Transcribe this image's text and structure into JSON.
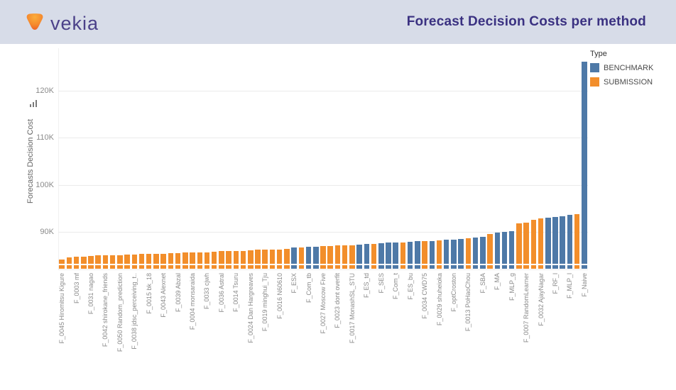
{
  "header": {
    "logo_text": "vekia",
    "title": "Forecast Decision Costs per method"
  },
  "legend": {
    "title": "Type",
    "items": [
      {
        "label": "BENCHMARK",
        "color": "#4e79a7"
      },
      {
        "label": "SUBMISSION",
        "color": "#f28e2b"
      }
    ]
  },
  "chart_data": {
    "type": "bar",
    "title": "Forecast Decision Costs per method",
    "xlabel": "",
    "ylabel": "Forecasts Decision Cost",
    "ylim": [
      82800,
      127000
    ],
    "grid": true,
    "legend_position": "top-right",
    "legend_title": "Type",
    "yticks": [
      {
        "value": 90000,
        "label": "90K"
      },
      {
        "value": 100000,
        "label": "100K"
      },
      {
        "value": 110000,
        "label": "110K"
      },
      {
        "value": 120000,
        "label": "120K"
      }
    ],
    "series": [
      {
        "name": "BENCHMARK",
        "color": "#4e79a7"
      },
      {
        "name": "SUBMISSION",
        "color": "#f28e2b"
      }
    ],
    "bars": [
      {
        "label": "F_0045 Hiromitsu Kigure",
        "type": "SUBMISSION",
        "value": 84200
      },
      {
        "label": "",
        "type": "SUBMISSION",
        "value": 84600
      },
      {
        "label": "F_0003 mf",
        "type": "SUBMISSION",
        "value": 84700
      },
      {
        "label": "",
        "type": "SUBMISSION",
        "value": 84800
      },
      {
        "label": "F_0031 nagao",
        "type": "SUBMISSION",
        "value": 84900
      },
      {
        "label": "",
        "type": "SUBMISSION",
        "value": 85000
      },
      {
        "label": "F_0042 shirokane_friends",
        "type": "SUBMISSION",
        "value": 85000
      },
      {
        "label": "",
        "type": "SUBMISSION",
        "value": 85100
      },
      {
        "label": "F_0050 Random_prediction",
        "type": "SUBMISSION",
        "value": 85100
      },
      {
        "label": "",
        "type": "SUBMISSION",
        "value": 85200
      },
      {
        "label": "F_0038 jdsc_perceiving_t..",
        "type": "SUBMISSION",
        "value": 85200
      },
      {
        "label": "",
        "type": "SUBMISSION",
        "value": 85300
      },
      {
        "label": "F_0015 bk_18",
        "type": "SUBMISSION",
        "value": 85300
      },
      {
        "label": "",
        "type": "SUBMISSION",
        "value": 85400
      },
      {
        "label": "F_0043 Alexnet",
        "type": "SUBMISSION",
        "value": 85400
      },
      {
        "label": "",
        "type": "SUBMISSION",
        "value": 85500
      },
      {
        "label": "F_0039 Abzal",
        "type": "SUBMISSION",
        "value": 85500
      },
      {
        "label": "",
        "type": "SUBMISSION",
        "value": 85600
      },
      {
        "label": "F_0004 monsaraida",
        "type": "SUBMISSION",
        "value": 85600
      },
      {
        "label": "",
        "type": "SUBMISSION",
        "value": 85700
      },
      {
        "label": "F_0033 cjwh",
        "type": "SUBMISSION",
        "value": 85700
      },
      {
        "label": "",
        "type": "SUBMISSION",
        "value": 85800
      },
      {
        "label": "F_0036 Astral",
        "type": "SUBMISSION",
        "value": 85900
      },
      {
        "label": "",
        "type": "SUBMISSION",
        "value": 85900
      },
      {
        "label": "F_0014 Tsuru",
        "type": "SUBMISSION",
        "value": 86000
      },
      {
        "label": "",
        "type": "SUBMISSION",
        "value": 86000
      },
      {
        "label": "F_0024 Dan Hargreaves",
        "type": "SUBMISSION",
        "value": 86100
      },
      {
        "label": "",
        "type": "SUBMISSION",
        "value": 86200
      },
      {
        "label": "F_0019 minghui_Tju",
        "type": "SUBMISSION",
        "value": 86200
      },
      {
        "label": "",
        "type": "SUBMISSION",
        "value": 86300
      },
      {
        "label": "F_0016 N60610",
        "type": "SUBMISSION",
        "value": 86300
      },
      {
        "label": "",
        "type": "SUBMISSION",
        "value": 86400
      },
      {
        "label": "F_ESX",
        "type": "BENCHMARK",
        "value": 86700
      },
      {
        "label": "",
        "type": "SUBMISSION",
        "value": 86700
      },
      {
        "label": "F_Com_tb",
        "type": "BENCHMARK",
        "value": 86800
      },
      {
        "label": "",
        "type": "BENCHMARK",
        "value": 86900
      },
      {
        "label": "F_0027 Moscow Five",
        "type": "SUBMISSION",
        "value": 87000
      },
      {
        "label": "",
        "type": "SUBMISSION",
        "value": 87000
      },
      {
        "label": "F_0023 dont overfit",
        "type": "SUBMISSION",
        "value": 87100
      },
      {
        "label": "",
        "type": "SUBMISSION",
        "value": 87100
      },
      {
        "label": "F_0017 MonashSL_STU",
        "type": "SUBMISSION",
        "value": 87200
      },
      {
        "label": "",
        "type": "BENCHMARK",
        "value": 87300
      },
      {
        "label": "F_ES_td",
        "type": "BENCHMARK",
        "value": 87400
      },
      {
        "label": "",
        "type": "SUBMISSION",
        "value": 87500
      },
      {
        "label": "F_SES",
        "type": "BENCHMARK",
        "value": 87600
      },
      {
        "label": "",
        "type": "BENCHMARK",
        "value": 87700
      },
      {
        "label": "F_Com_t",
        "type": "BENCHMARK",
        "value": 87700
      },
      {
        "label": "",
        "type": "SUBMISSION",
        "value": 87800
      },
      {
        "label": "F_ES_bu",
        "type": "BENCHMARK",
        "value": 87900
      },
      {
        "label": "",
        "type": "BENCHMARK",
        "value": 88000
      },
      {
        "label": "F_0034 CWD75",
        "type": "SUBMISSION",
        "value": 88000
      },
      {
        "label": "",
        "type": "BENCHMARK",
        "value": 88100
      },
      {
        "label": "F_0029 shuheioka",
        "type": "SUBMISSION",
        "value": 88200
      },
      {
        "label": "",
        "type": "BENCHMARK",
        "value": 88300
      },
      {
        "label": "F_optCroston",
        "type": "BENCHMARK",
        "value": 88300
      },
      {
        "label": "",
        "type": "BENCHMARK",
        "value": 88500
      },
      {
        "label": "F_0013 PoHaoChou",
        "type": "SUBMISSION",
        "value": 88600
      },
      {
        "label": "",
        "type": "BENCHMARK",
        "value": 88800
      },
      {
        "label": "F_SBA",
        "type": "BENCHMARK",
        "value": 89000
      },
      {
        "label": "",
        "type": "SUBMISSION",
        "value": 89500
      },
      {
        "label": "F_MA",
        "type": "BENCHMARK",
        "value": 89800
      },
      {
        "label": "",
        "type": "BENCHMARK",
        "value": 90000
      },
      {
        "label": "F_MLP_g",
        "type": "BENCHMARK",
        "value": 90100
      },
      {
        "label": "",
        "type": "SUBMISSION",
        "value": 91800
      },
      {
        "label": "F_0007 RandomLearner",
        "type": "SUBMISSION",
        "value": 92000
      },
      {
        "label": "",
        "type": "SUBMISSION",
        "value": 92500
      },
      {
        "label": "F_0032 AjayNagar",
        "type": "SUBMISSION",
        "value": 92800
      },
      {
        "label": "",
        "type": "BENCHMARK",
        "value": 93000
      },
      {
        "label": "F_RF_l",
        "type": "BENCHMARK",
        "value": 93100
      },
      {
        "label": "",
        "type": "BENCHMARK",
        "value": 93300
      },
      {
        "label": "F_MLP_l",
        "type": "BENCHMARK",
        "value": 93600
      },
      {
        "label": "",
        "type": "SUBMISSION",
        "value": 93800
      },
      {
        "label": "F_Naive",
        "type": "BENCHMARK",
        "value": 126100
      }
    ]
  }
}
